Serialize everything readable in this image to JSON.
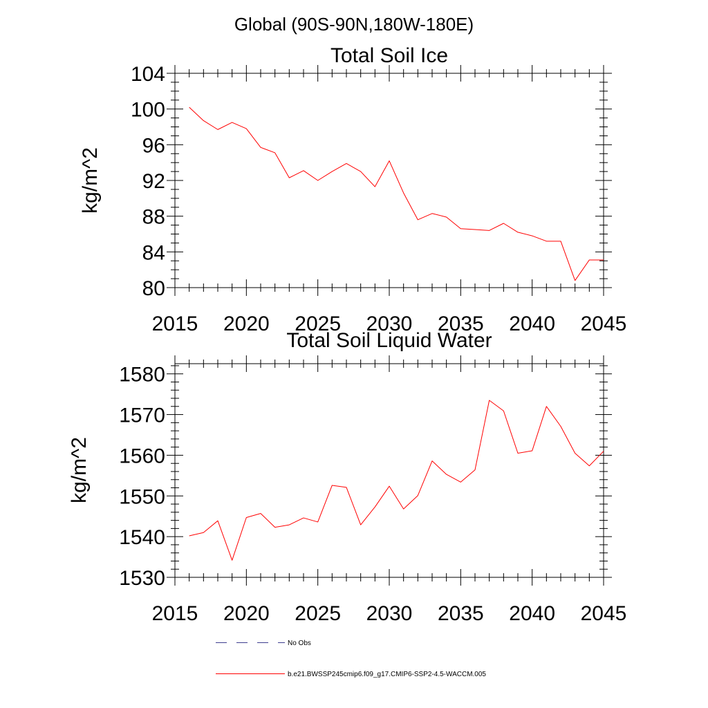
{
  "header": {
    "title": "Global (90S-90N,180W-180E)"
  },
  "colors": {
    "series": "#ff0000",
    "axis": "#000000",
    "no_obs": "#3d3d8f"
  },
  "legend": [
    {
      "label": "No Obs",
      "style": "dashed",
      "color": "#3d3d8f"
    },
    {
      "label": "b.e21.BWSSP245cmip6.f09_g17.CMIP6-SSP2-4.5-WACCM.005",
      "style": "solid",
      "color": "#ff0000"
    }
  ],
  "chart_data": [
    {
      "type": "line",
      "title": "Total Soil Ice",
      "ylabel": "kg/m^2",
      "xlabel": "",
      "xlim": [
        2015,
        2045
      ],
      "ylim": [
        80,
        104
      ],
      "xticks": [
        2015,
        2020,
        2025,
        2030,
        2035,
        2040,
        2045
      ],
      "yticks": [
        80,
        84,
        88,
        92,
        96,
        100,
        104
      ],
      "x_minor_step": 1,
      "y_minor_step": 1,
      "grid": false,
      "series": [
        {
          "name": "b.e21.BWSSP245cmip6.f09_g17.CMIP6-SSP2-4.5-WACCM.005",
          "color": "#ff0000",
          "x": [
            2016,
            2017,
            2018,
            2019,
            2020,
            2021,
            2022,
            2023,
            2024,
            2025,
            2026,
            2027,
            2028,
            2029,
            2030,
            2031,
            2032,
            2033,
            2034,
            2035,
            2036,
            2037,
            2038,
            2039,
            2040,
            2041,
            2042,
            2043,
            2044,
            2045
          ],
          "y": [
            100.2,
            98.7,
            97.7,
            98.5,
            97.8,
            95.7,
            95.1,
            92.3,
            93.1,
            92.0,
            93.0,
            93.9,
            93.0,
            91.3,
            94.2,
            90.6,
            87.6,
            88.3,
            87.9,
            86.6,
            86.5,
            86.4,
            87.2,
            86.2,
            85.8,
            85.2,
            85.2,
            80.8,
            83.1,
            83.1
          ]
        }
      ]
    },
    {
      "type": "line",
      "title": "Total Soil Liquid Water",
      "ylabel": "kg/m^2",
      "xlabel": "",
      "xlim": [
        2015,
        2045
      ],
      "ylim": [
        1530,
        1582.5
      ],
      "xticks": [
        2015,
        2020,
        2025,
        2030,
        2035,
        2040,
        2045
      ],
      "yticks": [
        1530,
        1540,
        1550,
        1560,
        1570,
        1580
      ],
      "x_minor_step": 1,
      "y_minor_step": 2,
      "grid": false,
      "series": [
        {
          "name": "b.e21.BWSSP245cmip6.f09_g17.CMIP6-SSP2-4.5-WACCM.005",
          "color": "#ff0000",
          "x": [
            2016,
            2017,
            2018,
            2019,
            2020,
            2021,
            2022,
            2023,
            2024,
            2025,
            2026,
            2027,
            2028,
            2029,
            2030,
            2031,
            2032,
            2033,
            2034,
            2035,
            2036,
            2037,
            2038,
            2039,
            2040,
            2041,
            2042,
            2043,
            2044,
            2045
          ],
          "y": [
            1540.2,
            1541.0,
            1543.9,
            1534.2,
            1544.7,
            1545.7,
            1542.3,
            1542.9,
            1544.6,
            1543.6,
            1552.6,
            1552.1,
            1542.9,
            1547.3,
            1552.4,
            1546.8,
            1550.1,
            1558.6,
            1555.3,
            1553.4,
            1556.4,
            1573.5,
            1570.9,
            1560.5,
            1561.1,
            1572.0,
            1567.1,
            1560.5,
            1557.4,
            1561.0
          ]
        }
      ]
    }
  ]
}
